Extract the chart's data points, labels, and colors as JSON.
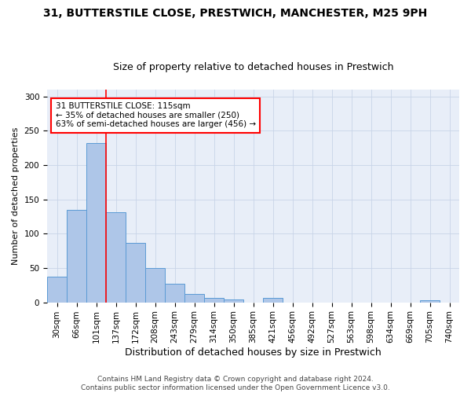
{
  "title1": "31, BUTTERSTILE CLOSE, PRESTWICH, MANCHESTER, M25 9PH",
  "title2": "Size of property relative to detached houses in Prestwich",
  "xlabel": "Distribution of detached houses by size in Prestwich",
  "ylabel": "Number of detached properties",
  "footer1": "Contains HM Land Registry data © Crown copyright and database right 2024.",
  "footer2": "Contains public sector information licensed under the Open Government Licence v3.0.",
  "bin_labels": [
    "30sqm",
    "66sqm",
    "101sqm",
    "137sqm",
    "172sqm",
    "208sqm",
    "243sqm",
    "279sqm",
    "314sqm",
    "350sqm",
    "385sqm",
    "421sqm",
    "456sqm",
    "492sqm",
    "527sqm",
    "563sqm",
    "598sqm",
    "634sqm",
    "669sqm",
    "705sqm",
    "740sqm"
  ],
  "bar_values": [
    37,
    135,
    232,
    131,
    87,
    50,
    27,
    12,
    6,
    4,
    0,
    6,
    0,
    0,
    0,
    0,
    0,
    0,
    0,
    3,
    0
  ],
  "bar_color": "#aec6e8",
  "bar_edgecolor": "#5b9bd5",
  "vline_x_idx": 2,
  "vline_color": "red",
  "annotation_text": "31 BUTTERSTILE CLOSE: 115sqm\n← 35% of detached houses are smaller (250)\n63% of semi-detached houses are larger (456) →",
  "annotation_box_color": "white",
  "annotation_box_edgecolor": "red",
  "ylim": [
    0,
    310
  ],
  "yticks": [
    0,
    50,
    100,
    150,
    200,
    250,
    300
  ],
  "grid_color": "#c8d4e8",
  "background_color": "#e8eef8",
  "title1_fontsize": 10,
  "title2_fontsize": 9,
  "xlabel_fontsize": 9,
  "ylabel_fontsize": 8,
  "tick_fontsize": 7.5,
  "ann_fontsize": 7.5,
  "footer_fontsize": 6.5
}
